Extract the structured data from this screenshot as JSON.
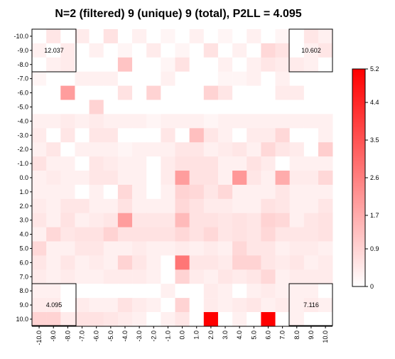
{
  "chart_data": {
    "type": "heatmap",
    "title": "N=2 (filtered) 9 (unique) 9 (total), P2LL = 4.095",
    "x_ticks": [
      "-10.0",
      "-9.0",
      "-8.0",
      "-7.0",
      "-6.0",
      "-5.0",
      "-4.0",
      "-3.0",
      "-2.0",
      "-1.0",
      "0.0",
      "1.0",
      "2.0",
      "3.0",
      "4.0",
      "5.0",
      "6.0",
      "7.0",
      "8.0",
      "9.0",
      "10.0"
    ],
    "y_ticks": [
      "-10.0",
      "-9.0",
      "-8.0",
      "-7.0",
      "-6.0",
      "-5.0",
      "-4.0",
      "-3.0",
      "-2.0",
      "-1.0",
      "0.0",
      "1.0",
      "2.0",
      "3.0",
      "4.0",
      "5.0",
      "6.0",
      "7.0",
      "8.0",
      "9.0",
      "10.0"
    ],
    "colorbar": {
      "min": 0,
      "max": 5.2,
      "ticks": [
        "5.2",
        "4.4",
        "3.5",
        "2.6",
        "1.7",
        "0.9",
        "0"
      ],
      "low_color": "#ffffff",
      "high_color": "#ff0000"
    },
    "corner_values": {
      "top_left": "12.037",
      "top_right": "10.602",
      "bottom_left": "4.095",
      "bottom_right": "7.116"
    },
    "values": [
      [
        0.0,
        0.5,
        0.0,
        0.4,
        0.0,
        0.6,
        0.0,
        0.3,
        0.0,
        0.2,
        0.0,
        0.3,
        0.0,
        0.2,
        0.0,
        0.3,
        0.0,
        0.2,
        0.0,
        0.5,
        0.3
      ],
      [
        0.3,
        0.0,
        0.4,
        0.0,
        0.3,
        0.0,
        0.2,
        0.0,
        0.4,
        0.0,
        0.2,
        0.0,
        0.6,
        0.0,
        0.3,
        0.0,
        0.8,
        0.6,
        0.0,
        0.3,
        0.5
      ],
      [
        0.0,
        0.3,
        0.4,
        0.0,
        0.0,
        0.0,
        1.2,
        0.0,
        0.0,
        0.2,
        0.6,
        0.0,
        0.0,
        0.3,
        0.0,
        0.3,
        0.5,
        0.4,
        0.4,
        0.3,
        0.0
      ],
      [
        0.2,
        0.0,
        0.0,
        0.3,
        0.3,
        0.3,
        0.0,
        0.0,
        0.0,
        0.3,
        0.0,
        0.0,
        0.0,
        0.2,
        0.2,
        0.3,
        0.0,
        0.3,
        0.0,
        0.0,
        0.0
      ],
      [
        0.0,
        0.0,
        2.0,
        0.0,
        0.0,
        0.0,
        0.6,
        0.0,
        0.9,
        0.0,
        0.0,
        0.0,
        0.9,
        0.5,
        0.0,
        0.0,
        0.0,
        0.4,
        0.4,
        0.0,
        0.0
      ],
      [
        0.0,
        0.0,
        0.0,
        0.0,
        0.9,
        0.0,
        0.0,
        0.0,
        0.0,
        0.0,
        0.0,
        0.0,
        0.0,
        0.0,
        0.0,
        0.0,
        0.0,
        0.0,
        0.0,
        0.0,
        0.0
      ],
      [
        0.3,
        0.3,
        0.4,
        0.3,
        0.4,
        0.3,
        0.3,
        0.3,
        0.2,
        0.3,
        0.3,
        0.3,
        0.2,
        0.3,
        0.3,
        0.3,
        0.3,
        0.3,
        0.3,
        0.3,
        0.3
      ],
      [
        0.4,
        0.0,
        0.5,
        0.0,
        0.5,
        0.5,
        0.0,
        0.0,
        0.0,
        0.5,
        0.0,
        1.3,
        0.5,
        0.3,
        0.0,
        0.4,
        0.4,
        0.8,
        0.0,
        0.0,
        0.3
      ],
      [
        0.3,
        0.5,
        0.0,
        0.3,
        0.3,
        0.3,
        0.2,
        0.3,
        0.3,
        0.3,
        0.5,
        0.5,
        0.3,
        0.4,
        0.5,
        0.3,
        0.8,
        0.5,
        0.4,
        0.0,
        1.0
      ],
      [
        0.6,
        0.3,
        0.3,
        0.0,
        0.5,
        0.4,
        0.3,
        0.3,
        0.0,
        0.4,
        0.6,
        0.6,
        0.6,
        0.3,
        0.3,
        0.6,
        0.4,
        0.0,
        0.3,
        0.3,
        0.3
      ],
      [
        0.3,
        0.4,
        0.3,
        0.3,
        0.5,
        0.5,
        0.3,
        0.3,
        0.0,
        0.4,
        2.0,
        0.6,
        0.6,
        0.3,
        2.1,
        0.5,
        0.3,
        1.7,
        0.4,
        0.4,
        0.8
      ],
      [
        0.3,
        0.3,
        0.3,
        0.0,
        0.3,
        0.0,
        0.8,
        0.3,
        0.0,
        0.3,
        0.9,
        0.8,
        0.5,
        0.8,
        0.3,
        0.3,
        0.3,
        0.5,
        0.3,
        0.3,
        0.3
      ],
      [
        0.4,
        0.3,
        0.5,
        0.5,
        0.3,
        0.3,
        0.6,
        0.3,
        0.3,
        0.3,
        0.8,
        0.6,
        0.4,
        0.4,
        0.3,
        0.3,
        0.6,
        0.5,
        0.3,
        0.3,
        0.5
      ],
      [
        0.5,
        0.3,
        0.6,
        0.3,
        0.4,
        0.5,
        2.0,
        0.5,
        0.5,
        0.5,
        1.4,
        0.6,
        0.6,
        0.5,
        0.6,
        0.5,
        0.9,
        0.8,
        0.3,
        0.5,
        0.6
      ],
      [
        0.3,
        0.8,
        0.5,
        0.6,
        0.6,
        0.9,
        0.6,
        0.6,
        0.6,
        0.6,
        0.8,
        0.6,
        0.8,
        0.5,
        0.6,
        0.5,
        0.8,
        0.5,
        0.5,
        0.5,
        0.6
      ],
      [
        0.8,
        0.3,
        0.3,
        0.5,
        0.5,
        0.3,
        0.3,
        0.4,
        0.3,
        0.3,
        0.4,
        0.3,
        0.4,
        0.3,
        0.8,
        0.5,
        0.5,
        0.3,
        0.4,
        0.4,
        0.3
      ],
      [
        0.5,
        0.3,
        0.5,
        0.3,
        0.4,
        0.3,
        0.9,
        0.5,
        0.3,
        0.0,
        2.8,
        0.5,
        0.5,
        0.4,
        0.9,
        0.9,
        0.5,
        0.4,
        0.5,
        0.3,
        0.4
      ],
      [
        0.4,
        0.3,
        0.4,
        0.3,
        0.3,
        0.4,
        0.4,
        0.4,
        0.3,
        0.0,
        0.9,
        0.4,
        0.3,
        0.5,
        0.4,
        0.5,
        0.8,
        0.3,
        0.4,
        0.4,
        0.4
      ],
      [
        0.3,
        0.3,
        0.0,
        0.0,
        0.0,
        0.0,
        0.0,
        0.0,
        0.0,
        0.3,
        0.0,
        0.0,
        0.4,
        0.3,
        0.0,
        0.3,
        0.4,
        0.3,
        0.3,
        0.3,
        0.0
      ],
      [
        0.4,
        0.4,
        0.0,
        0.4,
        0.3,
        0.3,
        0.6,
        0.4,
        0.3,
        0.0,
        0.9,
        0.0,
        0.4,
        0.3,
        0.4,
        0.5,
        0.3,
        0.4,
        0.3,
        0.4,
        0.3
      ],
      [
        0.9,
        0.9,
        0.4,
        0.6,
        0.6,
        0.5,
        0.4,
        0.3,
        0.0,
        0.3,
        0.5,
        0.0,
        5.2,
        0.0,
        0.3,
        0.0,
        5.2,
        0.0,
        0.3,
        0.0,
        0.0
      ]
    ]
  }
}
